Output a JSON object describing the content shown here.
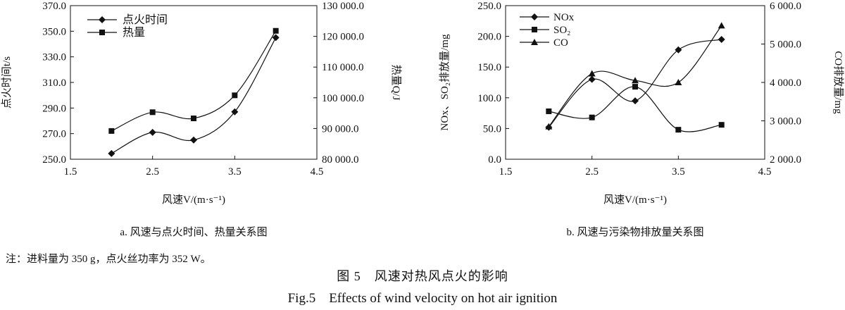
{
  "figure": {
    "note": "注：进料量为 350 g，点火丝功率为 352 W。",
    "caption_cn": "图 5　风速对热风点火的影响",
    "caption_en": "Fig.5　Effects of wind velocity on hot air ignition"
  },
  "chart_data": [
    {
      "type": "line",
      "subtitle": "a. 风速与点火时间、热量关系图",
      "xlabel": "风速V/(m·s⁻¹)",
      "ylabel": "点火时间t/s",
      "y2label": "热量Q/J",
      "xlim": [
        1.5,
        4.5
      ],
      "xticks": [
        "1.5",
        "2.5",
        "3.5",
        "4.5"
      ],
      "ylim": [
        250,
        370
      ],
      "yticks": [
        "250.0",
        "270.0",
        "290.0",
        "310.0",
        "330.0",
        "350.0",
        "370.0"
      ],
      "y2lim": [
        80000,
        130000
      ],
      "y2ticks": [
        "80 000.0",
        "90 000.0",
        "100 000.0",
        "110 000.0",
        "120 000.0",
        "130 000.0"
      ],
      "grid": false,
      "legend_position": "top-left",
      "x": [
        2.0,
        2.5,
        3.0,
        3.5,
        4.0
      ],
      "series": [
        {
          "name": "点火时间",
          "axis": "left",
          "marker": "diamond",
          "values": [
            254.5,
            271.0,
            265.0,
            287.0,
            345.0
          ]
        },
        {
          "name": "热量",
          "axis": "right",
          "marker": "square",
          "values": [
            89200,
            95300,
            93300,
            100800,
            121800
          ]
        }
      ]
    },
    {
      "type": "line",
      "subtitle": "b. 风速与污染物排放量关系图",
      "xlabel": "风速V/(m·s⁻¹)",
      "ylabel": "NOx、SO₂排放量/mg",
      "y2label": "CO排放量/mg",
      "xlim": [
        1.5,
        4.5
      ],
      "xticks": [
        "1.5",
        "2.5",
        "3.5",
        "4.5"
      ],
      "ylim": [
        0,
        250
      ],
      "yticks": [
        "0.0",
        "50.0",
        "100.0",
        "150.0",
        "200.0",
        "250.0"
      ],
      "y2lim": [
        2000,
        6000
      ],
      "y2ticks": [
        "2 000.0",
        "3 000.0",
        "4 000.0",
        "5 000.0",
        "6 000.0"
      ],
      "grid": false,
      "legend_position": "top-left",
      "x": [
        2.0,
        2.5,
        3.0,
        3.5,
        4.0
      ],
      "series": [
        {
          "name": "NOx",
          "axis": "left",
          "marker": "diamond",
          "values": [
            52,
            130,
            95,
            178,
            195
          ]
        },
        {
          "name": "SO₂",
          "axis": "left",
          "marker": "square",
          "values": [
            78,
            68,
            118,
            48,
            56
          ]
        },
        {
          "name": "CO",
          "axis": "right",
          "marker": "triangle",
          "values": [
            2850,
            4230,
            4050,
            4000,
            5480
          ]
        }
      ]
    }
  ]
}
